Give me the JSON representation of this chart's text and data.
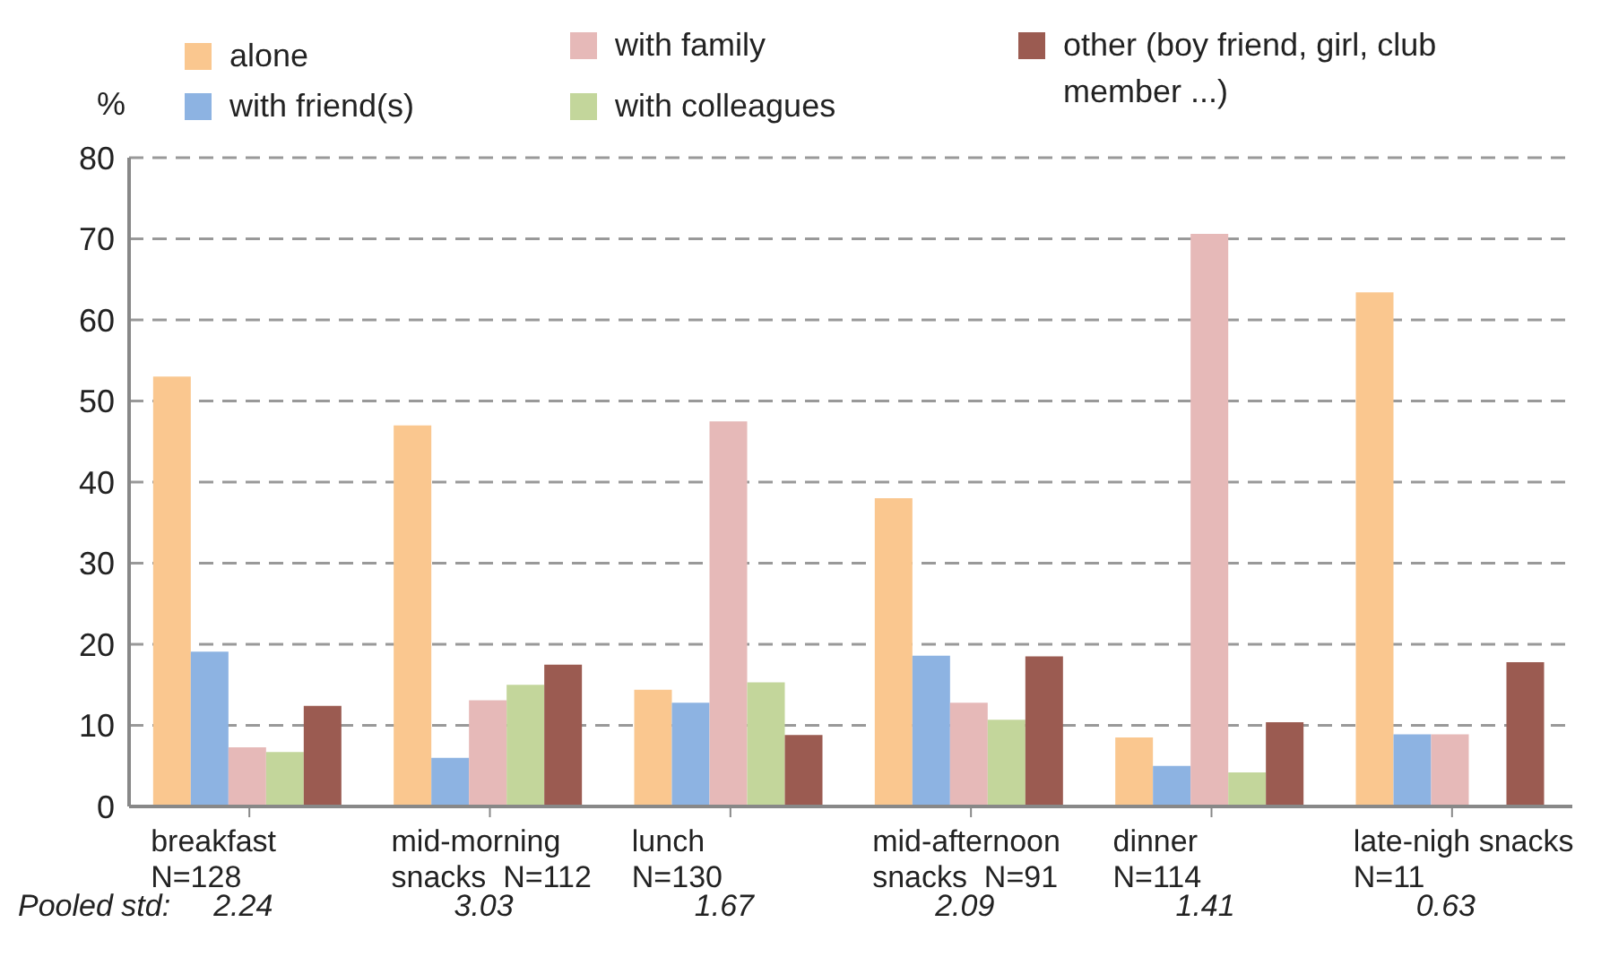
{
  "chart_data": {
    "type": "bar",
    "ylabel": "%",
    "categories": [
      "breakfast\nN=128",
      "mid-morning\nsnacks  N=112",
      "lunch\nN=130",
      "mid-afternoon\nsnacks  N=91",
      "dinner\nN=114",
      "late-nigh snacks\nN=11"
    ],
    "series": [
      {
        "name": "alone",
        "color": "#fac78f",
        "values": [
          53,
          47,
          14.4,
          38,
          8.5,
          63.4
        ]
      },
      {
        "name": "with friend(s)",
        "color": "#8db3e2",
        "values": [
          19.1,
          6,
          12.8,
          18.6,
          5,
          8.9
        ]
      },
      {
        "name": "with family",
        "color": "#e6b9b8",
        "values": [
          7.3,
          13.1,
          47.5,
          12.8,
          70.6,
          8.9
        ]
      },
      {
        "name": "with colleagues",
        "color": "#c3d69b",
        "values": [
          6.7,
          15,
          15.3,
          10.7,
          4.2,
          null
        ]
      },
      {
        "name": "other (boy friend, girl, club member ...)",
        "color": "#9b5b51",
        "values": [
          12.4,
          17.5,
          8.8,
          18.5,
          10.4,
          17.8
        ]
      }
    ],
    "ylim": [
      0,
      80
    ],
    "yticks": [
      0,
      10,
      20,
      30,
      40,
      50,
      60,
      70,
      80
    ],
    "grid": "y",
    "legend": "top",
    "annotations": [
      "Pooled std:",
      "2.24",
      "3.03",
      "1.67",
      "2.09",
      "1.41",
      "0.63"
    ]
  }
}
